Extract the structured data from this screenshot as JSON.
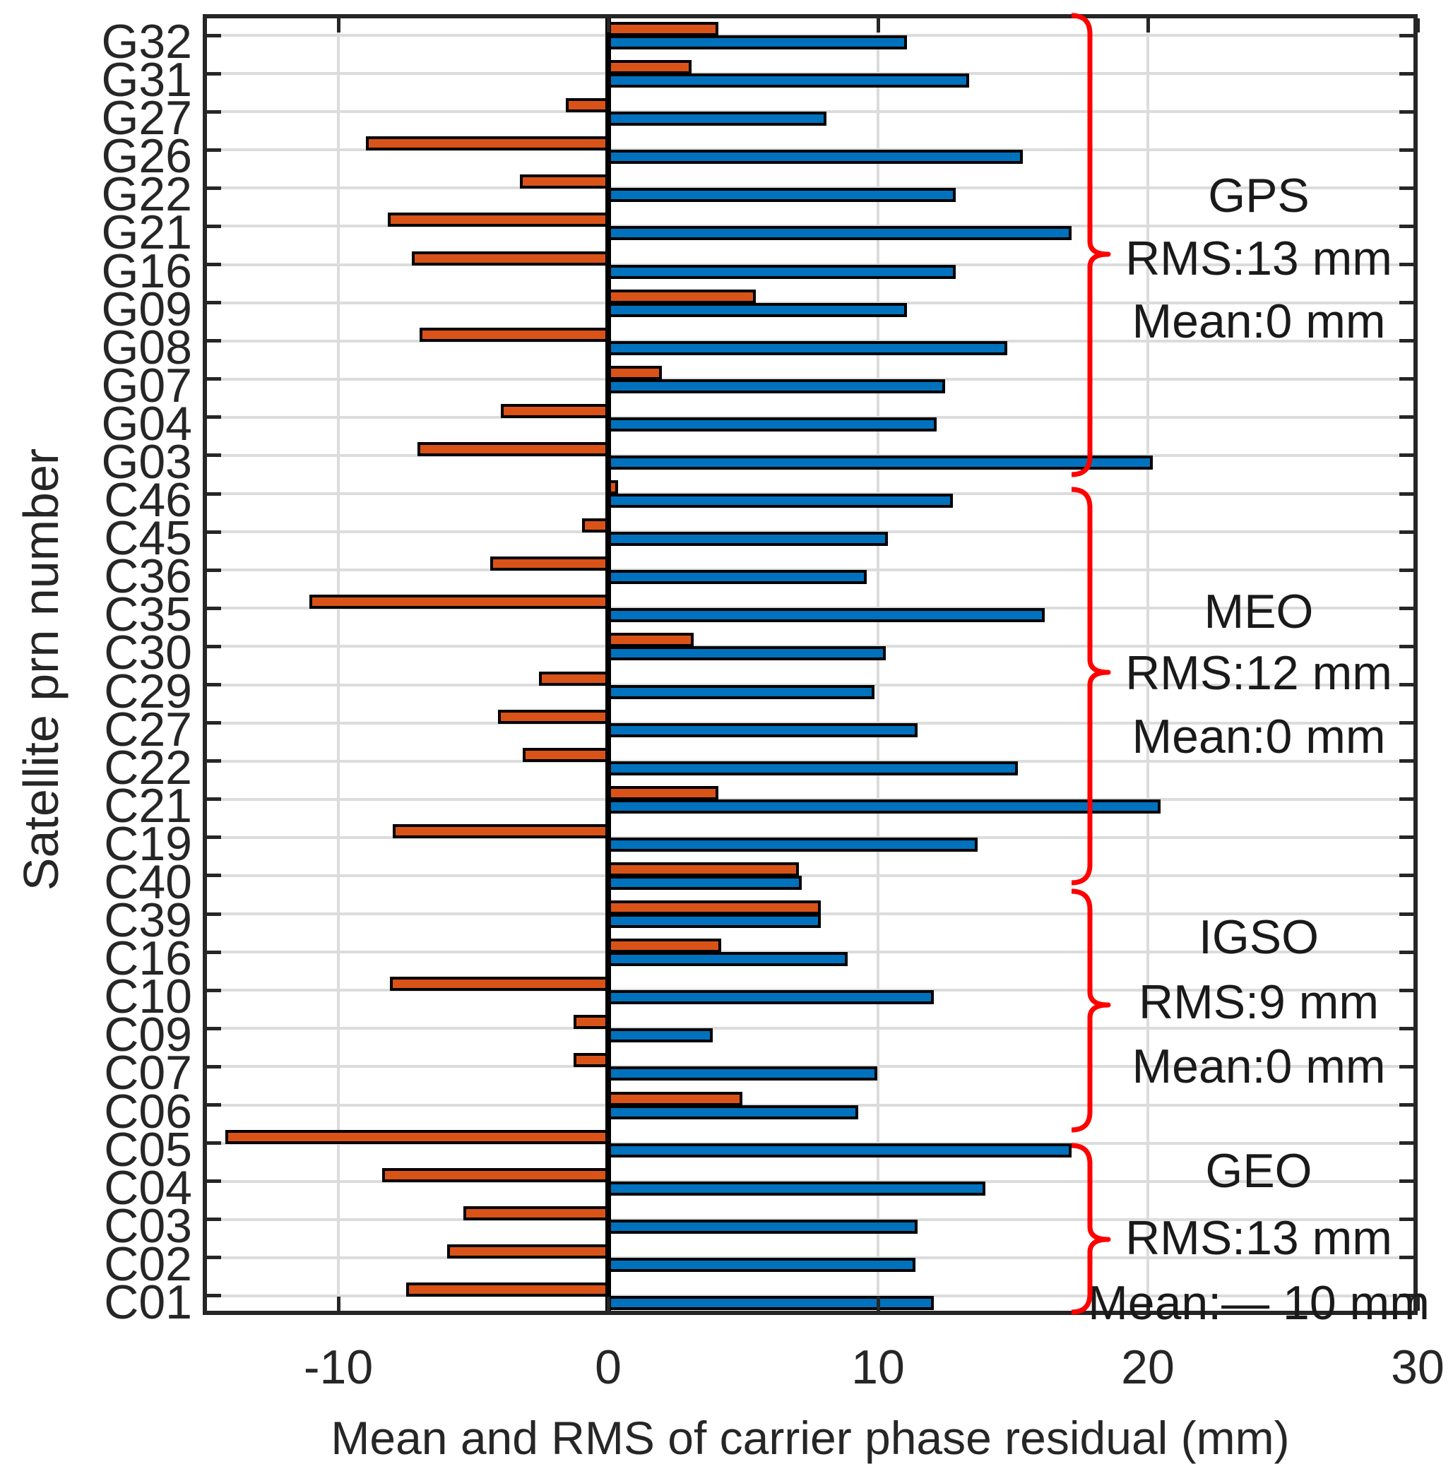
{
  "chart_data": {
    "type": "bar",
    "orientation": "horizontal",
    "xlabel": "Mean and RMS of carrier phase residual (mm)",
    "ylabel": "Satellite prn number",
    "xlim": [
      -15,
      30
    ],
    "xticks": [
      "-10",
      "0",
      "10",
      "20",
      "30"
    ],
    "xtick_values": [
      -10,
      0,
      10,
      20,
      30
    ],
    "grid": true,
    "legend_position": "none",
    "categories": [
      "G32",
      "G31",
      "G27",
      "G26",
      "G22",
      "G21",
      "G16",
      "G09",
      "G08",
      "G07",
      "G04",
      "G03",
      "C46",
      "C45",
      "C36",
      "C35",
      "C30",
      "C29",
      "C27",
      "C22",
      "C21",
      "C19",
      "C40",
      "C39",
      "C16",
      "C10",
      "C09",
      "C07",
      "C06",
      "C05",
      "C04",
      "C03",
      "C02",
      "C01"
    ],
    "series": [
      {
        "name": "Mean",
        "color": "#D95319",
        "values": [
          4,
          3,
          -1.5,
          -8.9,
          -3.2,
          -8.1,
          -7.2,
          5.4,
          -6.9,
          1.9,
          -3.9,
          -7,
          0.3,
          -0.9,
          -4.3,
          -11,
          3.1,
          -2.5,
          -4,
          -3.1,
          4,
          -7.9,
          7,
          7.8,
          4.1,
          -8,
          -1.2,
          -1.2,
          4.9,
          -14.1,
          -8.3,
          -5.3,
          -5.9,
          -7.4
        ]
      },
      {
        "name": "RMS",
        "color": "#0072BD",
        "values": [
          11,
          13.3,
          8,
          15.3,
          12.8,
          17.1,
          12.8,
          11,
          14.7,
          12.4,
          12.1,
          20.1,
          12.7,
          10.3,
          9.5,
          16.1,
          10.2,
          9.8,
          11.4,
          15.1,
          20.4,
          13.6,
          7.1,
          7.8,
          8.8,
          12,
          3.8,
          9.9,
          9.2,
          17.1,
          13.9,
          11.4,
          11.3,
          12
        ]
      }
    ],
    "groups": [
      {
        "label": "GPS",
        "rms_label": "RMS:13 mm",
        "mean_label": "Mean:0 mm",
        "row_start": 0,
        "row_end": 11
      },
      {
        "label": "MEO",
        "rms_label": "RMS:12 mm",
        "mean_label": "Mean:0 mm",
        "row_start": 12,
        "row_end": 21
      },
      {
        "label": "IGSO",
        "rms_label": "RMS:9 mm",
        "mean_label": "Mean:0 mm",
        "row_start": 22,
        "row_end": 28
      },
      {
        "label": "GEO",
        "rms_label": "RMS:13 mm",
        "mean_label": "Mean:— 10 mm",
        "row_start": 29,
        "row_end": 33
      }
    ],
    "bracket_color": "#FF0000",
    "bar_edge_color": "#000000"
  }
}
